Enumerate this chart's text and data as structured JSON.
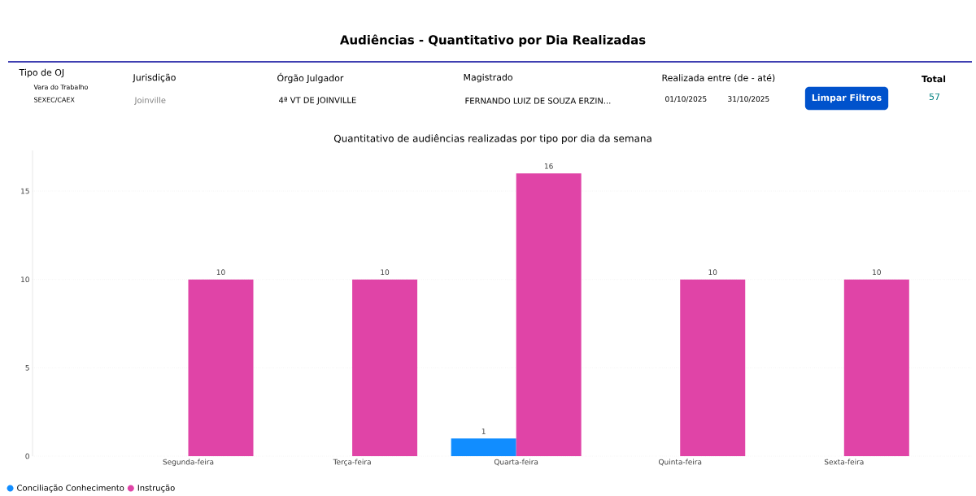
{
  "chart_data": {
    "type": "bar",
    "title": "Audiências - Quantitativo por Dia Realizadas",
    "subtitle": "Quantitativo de audiências realizadas por tipo por dia da semana",
    "categories": [
      "Segunda-feira",
      "Terça-feira",
      "Quarta-feira",
      "Quinta-feira",
      "Sexta-feira"
    ],
    "series": [
      {
        "name": "Conciliação Conhecimento",
        "color": "#118dff",
        "values": [
          null,
          null,
          1,
          null,
          null
        ]
      },
      {
        "name": "Instrução",
        "color": "#e044a7",
        "values": [
          10,
          10,
          16,
          10,
          10
        ]
      }
    ],
    "ylim": [
      0,
      17.3
    ],
    "yticks": [
      0,
      5,
      10,
      15
    ],
    "grid": "y",
    "legend": "bottom left",
    "data_labels": true,
    "annotations": [
      "Tipo de OJ",
      "Vara do Trabalho",
      "SEXEC/CAEX",
      "Jurisdição",
      "Joinville",
      "Órgão Julgador",
      "4ª VT DE JOINVILLE",
      "Magistrado",
      "FERNANDO LUIZ DE SOUZA ERZIN...",
      "Realizada entre (de - até)",
      "01/10/2025",
      "31/10/2025",
      "Limpar Filtros",
      "Total",
      "57"
    ]
  }
}
